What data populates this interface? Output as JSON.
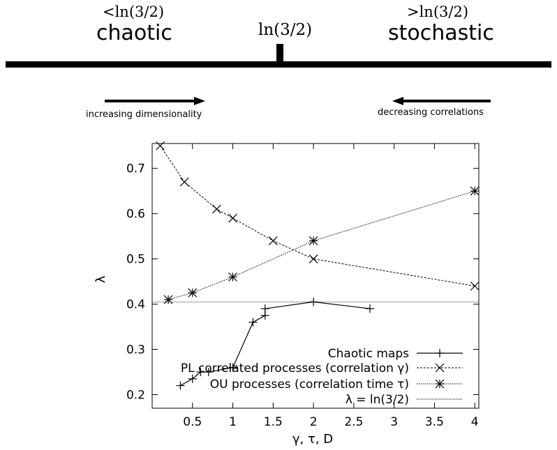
{
  "header": {
    "left_cond": "<ln(3/2)",
    "left_word": "chaotic",
    "center_label": "ln(3/2)",
    "right_cond": ">ln(3/2)",
    "right_word": "stochastic",
    "left_arrow_label": "increasing dimensionality",
    "right_arrow_label": "decreasing correlations"
  },
  "chart_data": {
    "type": "line",
    "xlabel": "γ, τ, D",
    "ylabel": "λ",
    "xlim": [
      0,
      4.05
    ],
    "ylim": [
      0.17,
      0.755
    ],
    "xticks": [
      0.5,
      1,
      1.5,
      2,
      2.5,
      3,
      3.5,
      4
    ],
    "xtick_labels": [
      "0.5",
      "1",
      "1.5",
      "2",
      "2.5",
      "3",
      "3.5",
      "4"
    ],
    "yticks": [
      0.2,
      0.3,
      0.4,
      0.5,
      0.6,
      0.7
    ],
    "ytick_labels": [
      "0.2",
      "0.3",
      "0.4",
      "0.5",
      "0.6",
      "0.7"
    ],
    "grid": false,
    "legend_position": "bottom-right",
    "series": [
      {
        "name": "Chaotic maps",
        "marker": "plus",
        "line": "solid",
        "x": [
          0.35,
          0.5,
          0.6,
          0.7,
          1.0,
          1.25,
          1.4,
          1.4,
          2.0,
          2.7
        ],
        "y": [
          0.22,
          0.235,
          0.25,
          0.25,
          0.26,
          0.36,
          0.375,
          0.39,
          0.405,
          0.39
        ]
      },
      {
        "name": "PL correlated processes (correlation γ)",
        "marker": "cross",
        "line": "dashed",
        "x": [
          0.1,
          0.4,
          0.8,
          1.0,
          1.5,
          2.0,
          4.0
        ],
        "y": [
          0.75,
          0.67,
          0.61,
          0.59,
          0.54,
          0.5,
          0.44
        ]
      },
      {
        "name": "OU processes (correlation time τ)",
        "marker": "star",
        "line": "dotted",
        "x": [
          0.2,
          0.5,
          1.0,
          2.0,
          4.0
        ],
        "y": [
          0.41,
          0.425,
          0.46,
          0.54,
          0.65
        ]
      },
      {
        "name": "λ = ln(3/2)",
        "marker": "none",
        "line": "dotted-thin",
        "constant": 0.405
      }
    ]
  }
}
